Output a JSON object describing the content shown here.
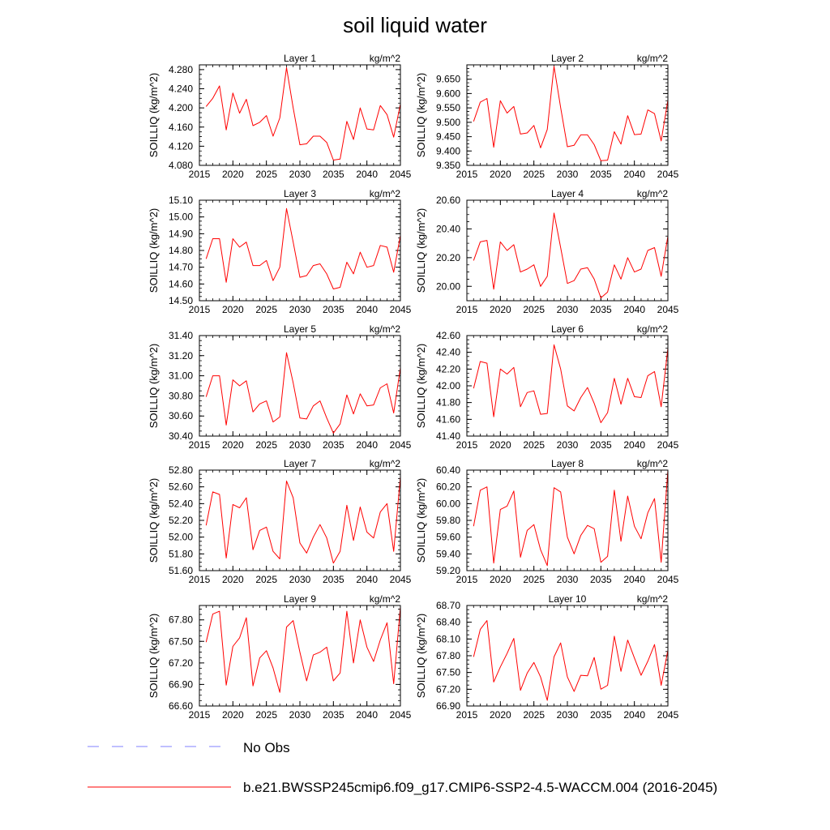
{
  "title": "soil liquid water",
  "legend": [
    {
      "label": "No Obs",
      "color": "#8080ff",
      "style": "dashed"
    },
    {
      "label": "b.e21.BWSSP245cmip6.f09_g17.CMIP6-SSP2-4.5-WACCM.004 (2016-2045)",
      "color": "#ff0000",
      "style": "solid"
    }
  ],
  "chart_data": [
    {
      "type": "line",
      "title": "Layer 1",
      "units": "kg/m^2",
      "ylabel": "SOILLIQ  (kg/m^2)",
      "xlim": [
        2015,
        2045
      ],
      "ylim": [
        4.08,
        4.29
      ],
      "xticks": [
        "2015",
        "2020",
        "2025",
        "2030",
        "2035",
        "2040",
        "2045"
      ],
      "yticks": [
        "4.080",
        "4.120",
        "4.160",
        "4.200",
        "4.240",
        "4.280"
      ],
      "series": [
        {
          "color": "#ff0000",
          "x": [
            2016,
            2017,
            2018,
            2019,
            2020,
            2021,
            2022,
            2023,
            2024,
            2025,
            2026,
            2027,
            2028,
            2029,
            2030,
            2031,
            2032,
            2033,
            2034,
            2035,
            2036,
            2037,
            2038,
            2039,
            2040,
            2041,
            2042,
            2043,
            2044,
            2045
          ],
          "y": [
            4.203,
            4.22,
            4.246,
            4.154,
            4.231,
            4.189,
            4.218,
            4.163,
            4.17,
            4.184,
            4.141,
            4.179,
            4.284,
            4.2,
            4.123,
            4.125,
            4.141,
            4.141,
            4.128,
            4.091,
            4.093,
            4.172,
            4.134,
            4.2,
            4.156,
            4.154,
            4.205,
            4.186,
            4.139,
            4.208
          ]
        }
      ]
    },
    {
      "type": "line",
      "title": "Layer 2",
      "units": "kg/m^2",
      "ylabel": "SOILLIQ  (kg/m^2)",
      "xlim": [
        2015,
        2045
      ],
      "ylim": [
        9.35,
        9.7
      ],
      "xticks": [
        "2015",
        "2020",
        "2025",
        "2030",
        "2035",
        "2040",
        "2045"
      ],
      "yticks": [
        "9.350",
        "9.400",
        "9.450",
        "9.500",
        "9.550",
        "9.600",
        "9.650"
      ],
      "series": [
        {
          "color": "#ff0000",
          "x": [
            2016,
            2017,
            2018,
            2019,
            2020,
            2021,
            2022,
            2023,
            2024,
            2025,
            2026,
            2027,
            2028,
            2029,
            2030,
            2031,
            2032,
            2033,
            2034,
            2035,
            2036,
            2037,
            2038,
            2039,
            2040,
            2041,
            2042,
            2043,
            2044,
            2045
          ],
          "y": [
            9.503,
            9.57,
            9.583,
            9.413,
            9.575,
            9.532,
            9.555,
            9.459,
            9.463,
            9.489,
            9.411,
            9.475,
            9.695,
            9.551,
            9.415,
            9.42,
            9.456,
            9.456,
            9.422,
            9.366,
            9.368,
            9.467,
            9.424,
            9.523,
            9.457,
            9.459,
            9.543,
            9.53,
            9.435,
            9.577
          ]
        }
      ]
    },
    {
      "type": "line",
      "title": "Layer 3",
      "units": "kg/m^2",
      "ylabel": "SOILLIQ  (kg/m^2)",
      "xlim": [
        2015,
        2045
      ],
      "ylim": [
        14.5,
        15.1
      ],
      "xticks": [
        "2015",
        "2020",
        "2025",
        "2030",
        "2035",
        "2040",
        "2045"
      ],
      "yticks": [
        "14.50",
        "14.60",
        "14.70",
        "14.80",
        "14.90",
        "15.00",
        "15.10"
      ],
      "series": [
        {
          "color": "#ff0000",
          "x": [
            2016,
            2017,
            2018,
            2019,
            2020,
            2021,
            2022,
            2023,
            2024,
            2025,
            2026,
            2027,
            2028,
            2029,
            2030,
            2031,
            2032,
            2033,
            2034,
            2035,
            2036,
            2037,
            2038,
            2039,
            2040,
            2041,
            2042,
            2043,
            2044,
            2045
          ],
          "y": [
            14.75,
            14.87,
            14.87,
            14.61,
            14.87,
            14.82,
            14.85,
            14.71,
            14.71,
            14.74,
            14.62,
            14.7,
            15.05,
            14.85,
            14.64,
            14.65,
            14.71,
            14.72,
            14.66,
            14.57,
            14.58,
            14.73,
            14.66,
            14.79,
            14.7,
            14.71,
            14.83,
            14.82,
            14.67,
            14.89
          ]
        }
      ]
    },
    {
      "type": "line",
      "title": "Layer 4",
      "units": "kg/m^2",
      "ylabel": "SOILLIQ  (kg/m^2)",
      "xlim": [
        2015,
        2045
      ],
      "ylim": [
        19.9,
        20.6
      ],
      "xticks": [
        "2015",
        "2020",
        "2025",
        "2030",
        "2035",
        "2040",
        "2045"
      ],
      "yticks": [
        "20.00",
        "20.20",
        "20.40",
        "20.60"
      ],
      "series": [
        {
          "color": "#ff0000",
          "x": [
            2016,
            2017,
            2018,
            2019,
            2020,
            2021,
            2022,
            2023,
            2024,
            2025,
            2026,
            2027,
            2028,
            2029,
            2030,
            2031,
            2032,
            2033,
            2034,
            2035,
            2036,
            2037,
            2038,
            2039,
            2040,
            2041,
            2042,
            2043,
            2044,
            2045
          ],
          "y": [
            20.18,
            20.31,
            20.32,
            19.98,
            20.31,
            20.25,
            20.29,
            20.1,
            20.12,
            20.15,
            20.0,
            20.07,
            20.51,
            20.27,
            20.02,
            20.04,
            20.12,
            20.13,
            20.05,
            19.92,
            19.96,
            20.15,
            20.05,
            20.2,
            20.1,
            20.12,
            20.25,
            20.27,
            20.07,
            20.35
          ]
        }
      ]
    },
    {
      "type": "line",
      "title": "Layer 5",
      "units": "kg/m^2",
      "ylabel": "SOILLIQ  (kg/m^2)",
      "xlim": [
        2015,
        2045
      ],
      "ylim": [
        30.4,
        31.4
      ],
      "xticks": [
        "2015",
        "2020",
        "2025",
        "2030",
        "2035",
        "2040",
        "2045"
      ],
      "yticks": [
        "30.40",
        "30.60",
        "30.80",
        "31.00",
        "31.20",
        "31.40"
      ],
      "series": [
        {
          "color": "#ff0000",
          "x": [
            2016,
            2017,
            2018,
            2019,
            2020,
            2021,
            2022,
            2023,
            2024,
            2025,
            2026,
            2027,
            2028,
            2029,
            2030,
            2031,
            2032,
            2033,
            2034,
            2035,
            2036,
            2037,
            2038,
            2039,
            2040,
            2041,
            2042,
            2043,
            2044,
            2045
          ],
          "y": [
            30.79,
            31.0,
            31.0,
            30.51,
            30.96,
            30.9,
            30.95,
            30.64,
            30.72,
            30.75,
            30.54,
            30.59,
            31.23,
            30.93,
            30.58,
            30.57,
            30.7,
            30.75,
            30.58,
            30.43,
            30.52,
            30.81,
            30.62,
            30.82,
            30.7,
            30.71,
            30.88,
            30.92,
            30.63,
            31.08
          ]
        }
      ]
    },
    {
      "type": "line",
      "title": "Layer 6",
      "units": "kg/m^2",
      "ylabel": "SOILLIQ  (kg/m^2)",
      "xlim": [
        2015,
        2045
      ],
      "ylim": [
        41.4,
        42.6
      ],
      "xticks": [
        "2015",
        "2020",
        "2025",
        "2030",
        "2035",
        "2040",
        "2045"
      ],
      "yticks": [
        "41.40",
        "41.60",
        "41.80",
        "42.00",
        "42.20",
        "42.40",
        "42.60"
      ],
      "series": [
        {
          "color": "#ff0000",
          "x": [
            2016,
            2017,
            2018,
            2019,
            2020,
            2021,
            2022,
            2023,
            2024,
            2025,
            2026,
            2027,
            2028,
            2029,
            2030,
            2031,
            2032,
            2033,
            2034,
            2035,
            2036,
            2037,
            2038,
            2039,
            2040,
            2041,
            2042,
            2043,
            2044,
            2045
          ],
          "y": [
            41.97,
            42.29,
            42.27,
            41.63,
            42.2,
            42.14,
            42.22,
            41.75,
            41.92,
            41.94,
            41.66,
            41.67,
            42.49,
            42.2,
            41.76,
            41.7,
            41.86,
            41.98,
            41.79,
            41.56,
            41.68,
            42.09,
            41.78,
            42.09,
            41.87,
            41.86,
            42.12,
            42.17,
            41.75,
            42.45
          ]
        }
      ]
    },
    {
      "type": "line",
      "title": "Layer 7",
      "units": "kg/m^2",
      "ylabel": "SOILLIQ  (kg/m^2)",
      "xlim": [
        2015,
        2045
      ],
      "ylim": [
        51.6,
        52.8
      ],
      "xticks": [
        "2015",
        "2020",
        "2025",
        "2030",
        "2035",
        "2040",
        "2045"
      ],
      "yticks": [
        "51.60",
        "51.80",
        "52.00",
        "52.20",
        "52.40",
        "52.60",
        "52.80"
      ],
      "series": [
        {
          "color": "#ff0000",
          "x": [
            2016,
            2017,
            2018,
            2019,
            2020,
            2021,
            2022,
            2023,
            2024,
            2025,
            2026,
            2027,
            2028,
            2029,
            2030,
            2031,
            2032,
            2033,
            2034,
            2035,
            2036,
            2037,
            2038,
            2039,
            2040,
            2041,
            2042,
            2043,
            2044,
            2045
          ],
          "y": [
            52.14,
            52.54,
            52.51,
            51.75,
            52.39,
            52.35,
            52.47,
            51.85,
            52.08,
            52.12,
            51.83,
            51.74,
            52.67,
            52.47,
            51.93,
            51.81,
            52.0,
            52.15,
            51.99,
            51.69,
            51.83,
            52.38,
            51.96,
            52.36,
            52.06,
            51.99,
            52.3,
            52.4,
            51.83,
            52.72
          ]
        }
      ]
    },
    {
      "type": "line",
      "title": "Layer 8",
      "units": "kg/m^2",
      "ylabel": "SOILLIQ  (kg/m^2)",
      "xlim": [
        2015,
        2045
      ],
      "ylim": [
        59.2,
        60.4
      ],
      "xticks": [
        "2015",
        "2020",
        "2025",
        "2030",
        "2035",
        "2040",
        "2045"
      ],
      "yticks": [
        "59.20",
        "59.40",
        "59.60",
        "59.80",
        "60.00",
        "60.20",
        "60.40"
      ],
      "series": [
        {
          "color": "#ff0000",
          "x": [
            2016,
            2017,
            2018,
            2019,
            2020,
            2021,
            2022,
            2023,
            2024,
            2025,
            2026,
            2027,
            2028,
            2029,
            2030,
            2031,
            2032,
            2033,
            2034,
            2035,
            2036,
            2037,
            2038,
            2039,
            2040,
            2041,
            2042,
            2043,
            2044,
            2045
          ],
          "y": [
            59.73,
            60.16,
            60.2,
            59.29,
            59.93,
            59.97,
            60.15,
            59.36,
            59.68,
            59.75,
            59.45,
            59.26,
            60.19,
            60.14,
            59.6,
            59.4,
            59.62,
            59.74,
            59.7,
            59.3,
            59.37,
            60.16,
            59.55,
            60.09,
            59.73,
            59.58,
            59.89,
            60.06,
            59.3,
            60.4
          ]
        }
      ]
    },
    {
      "type": "line",
      "title": "Layer 9",
      "units": "kg/m^2",
      "ylabel": "SOILLIQ  (kg/m^2)",
      "xlim": [
        2015,
        2045
      ],
      "ylim": [
        66.6,
        68.0
      ],
      "xticks": [
        "2015",
        "2020",
        "2025",
        "2030",
        "2035",
        "2040",
        "2045"
      ],
      "yticks": [
        "66.60",
        "66.90",
        "67.20",
        "67.50",
        "67.80"
      ],
      "series": [
        {
          "color": "#ff0000",
          "x": [
            2016,
            2017,
            2018,
            2019,
            2020,
            2021,
            2022,
            2023,
            2024,
            2025,
            2026,
            2027,
            2028,
            2029,
            2030,
            2031,
            2032,
            2033,
            2034,
            2035,
            2036,
            2037,
            2038,
            2039,
            2040,
            2041,
            2042,
            2043,
            2044,
            2045
          ],
          "y": [
            67.49,
            67.88,
            67.92,
            66.89,
            67.43,
            67.55,
            67.83,
            66.88,
            67.27,
            67.37,
            67.13,
            66.79,
            67.7,
            67.79,
            67.35,
            66.95,
            67.31,
            67.35,
            67.42,
            66.95,
            67.06,
            67.92,
            67.2,
            67.8,
            67.42,
            67.22,
            67.52,
            67.76,
            66.91,
            67.98
          ]
        }
      ]
    },
    {
      "type": "line",
      "title": "Layer 10",
      "units": "kg/m^2",
      "ylabel": "SOILLIQ  (kg/m^2)",
      "xlim": [
        2015,
        2045
      ],
      "ylim": [
        66.9,
        68.7
      ],
      "xticks": [
        "2015",
        "2020",
        "2025",
        "2030",
        "2035",
        "2040",
        "2045"
      ],
      "yticks": [
        "66.90",
        "67.20",
        "67.50",
        "67.80",
        "68.10",
        "68.40",
        "68.70"
      ],
      "series": [
        {
          "color": "#ff0000",
          "x": [
            2016,
            2017,
            2018,
            2019,
            2020,
            2021,
            2022,
            2023,
            2024,
            2025,
            2026,
            2027,
            2028,
            2029,
            2030,
            2031,
            2032,
            2033,
            2034,
            2035,
            2036,
            2037,
            2038,
            2039,
            2040,
            2041,
            2042,
            2043,
            2044,
            2045
          ],
          "y": [
            67.78,
            68.27,
            68.43,
            67.33,
            67.6,
            67.84,
            68.11,
            67.18,
            67.49,
            67.68,
            67.42,
            67.0,
            67.78,
            68.03,
            67.42,
            67.16,
            67.45,
            67.44,
            67.77,
            67.2,
            67.27,
            68.15,
            67.52,
            68.08,
            67.76,
            67.45,
            67.7,
            68.0,
            67.27,
            67.9
          ]
        }
      ]
    }
  ]
}
